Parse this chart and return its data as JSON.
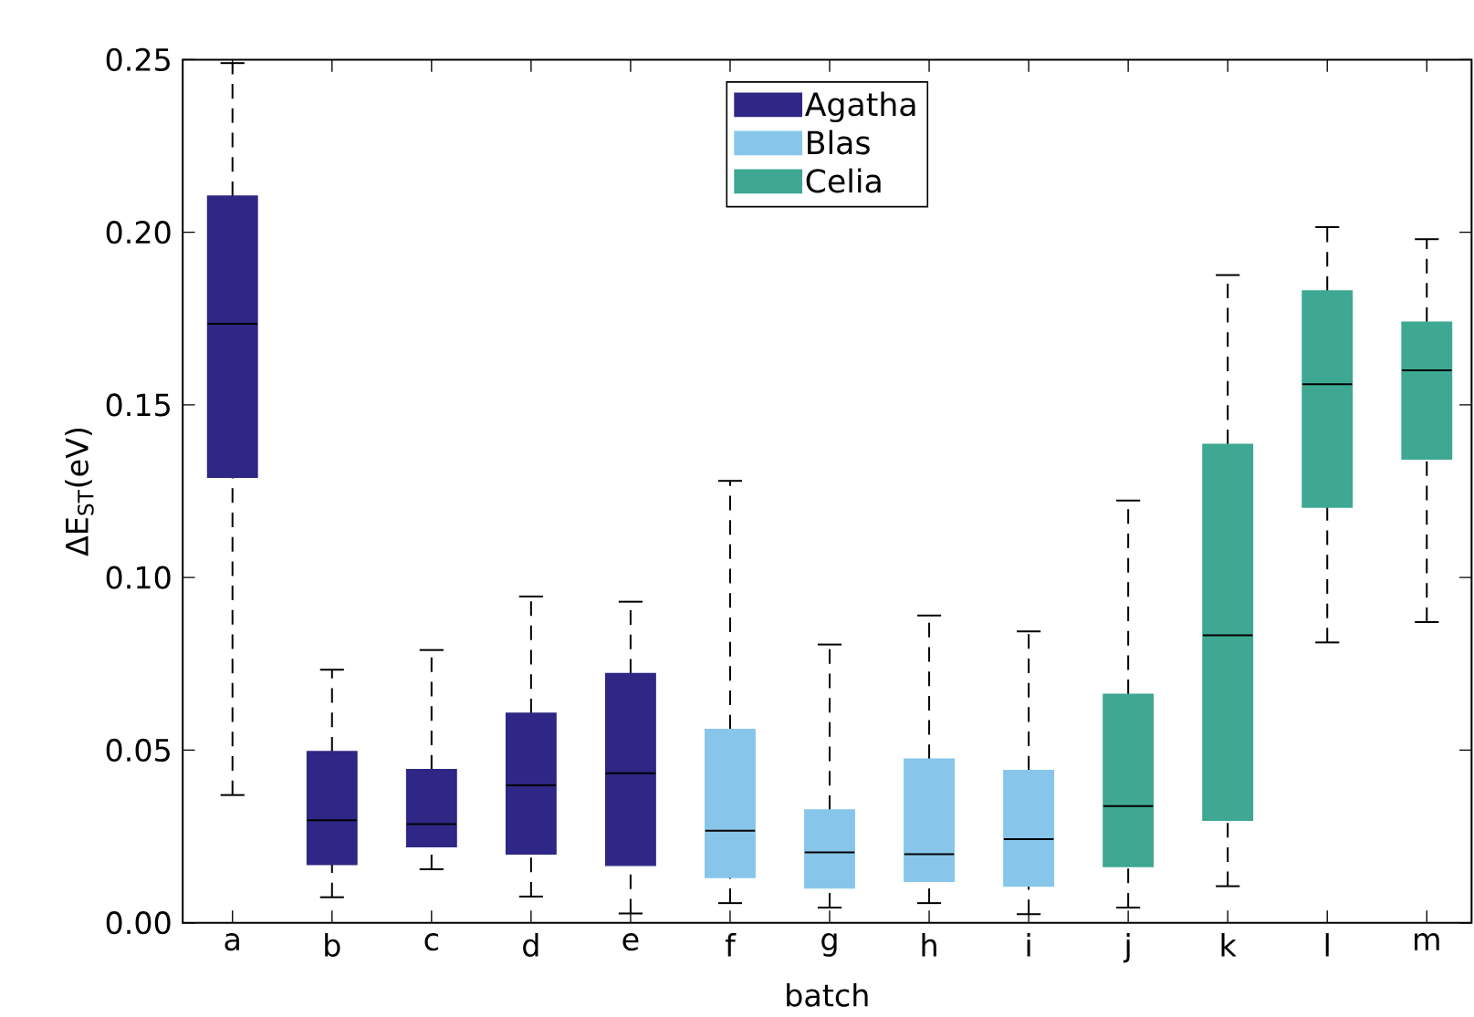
{
  "chart_data": {
    "type": "box",
    "xlabel": "batch",
    "ylabel": "ΔE$_{ST}$(eV)",
    "categories": [
      "a",
      "b",
      "c",
      "d",
      "e",
      "f",
      "g",
      "h",
      "i",
      "j",
      "k",
      "l",
      "m"
    ],
    "ylim": [
      0,
      0.25
    ],
    "yticks": [
      {
        "value": 0,
        "label": "0.00"
      },
      0.05,
      {
        "value": 0.1,
        "label": "0.10"
      },
      0.15,
      {
        "value": 0.2,
        "label": "0.20"
      },
      0.25
    ],
    "legend": "top",
    "series": [
      {
        "name": "Agatha",
        "color": "#2e2785",
        "boxes": [
          {
            "low": 0.037,
            "q1": 0.129,
            "median": 0.1735,
            "q3": 0.2105,
            "high": 0.249
          },
          {
            "low": 0.0074,
            "q1": 0.0169,
            "median": 0.0297,
            "q3": 0.0496,
            "high": 0.0733
          },
          {
            "low": 0.0155,
            "q1": 0.022,
            "median": 0.0286,
            "q3": 0.0444,
            "high": 0.079
          },
          {
            "low": 0.0076,
            "q1": 0.0199,
            "median": 0.0398,
            "q3": 0.0607,
            "high": 0.0945
          },
          {
            "low": 0.0027,
            "q1": 0.0166,
            "median": 0.0433,
            "q3": 0.0722,
            "high": 0.093
          },
          null,
          null,
          null,
          null,
          null,
          null,
          null,
          null
        ]
      },
      {
        "name": "Blas",
        "color": "#87c6ea",
        "boxes": [
          null,
          null,
          null,
          null,
          null,
          {
            "low": 0.0057,
            "q1": 0.0131,
            "median": 0.0267,
            "q3": 0.056,
            "high": 0.128
          },
          {
            "low": 0.0044,
            "q1": 0.0101,
            "median": 0.0204,
            "q3": 0.0327,
            "high": 0.0806
          },
          {
            "low": 0.0057,
            "q1": 0.012,
            "median": 0.0199,
            "q3": 0.0474,
            "high": 0.089
          },
          {
            "low": 0.0025,
            "q1": 0.0106,
            "median": 0.0242,
            "q3": 0.0441,
            "high": 0.0844
          },
          null,
          null,
          null,
          null
        ]
      },
      {
        "name": "Celia",
        "color": "#3fa892",
        "boxes": [
          null,
          null,
          null,
          null,
          null,
          null,
          null,
          null,
          null,
          {
            "low": 0.0044,
            "q1": 0.0163,
            "median": 0.0338,
            "q3": 0.0662,
            "high": 0.1223
          },
          {
            "low": 0.0106,
            "q1": 0.0297,
            "median": 0.0833,
            "q3": 0.1386,
            "high": 0.1876
          },
          {
            "low": 0.0812,
            "q1": 0.1204,
            "median": 0.156,
            "q3": 0.183,
            "high": 0.2015
          },
          {
            "low": 0.0871,
            "q1": 0.1343,
            "median": 0.16,
            "q3": 0.174,
            "high": 0.198
          }
        ]
      }
    ]
  }
}
